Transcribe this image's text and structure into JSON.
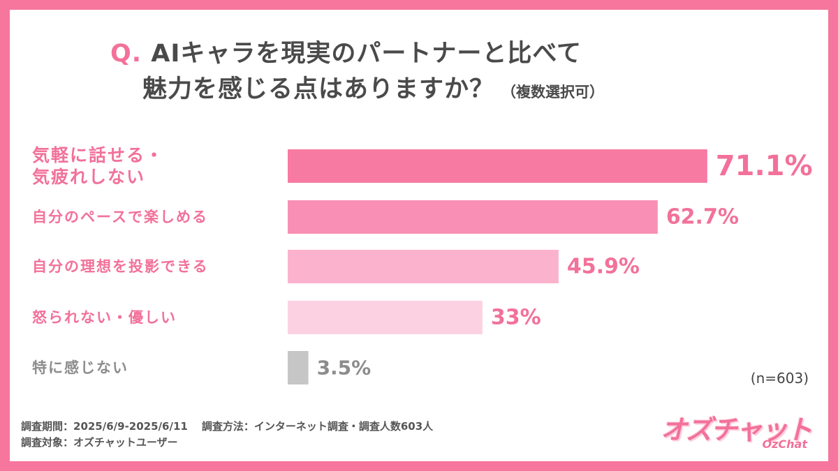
{
  "question": {
    "mark": "Q.",
    "line1": "AIキャラを現実のパートナーと比べて",
    "line2": "魅力を感じる点はありますか？",
    "note": "（複数選択可）"
  },
  "chart_data": {
    "type": "bar",
    "orientation": "horizontal",
    "title": "AIキャラを現実のパートナーと比べて魅力を感じる点はありますか？（複数選択可）",
    "categories": [
      [
        "気軽に話せる・",
        "気疲れしない"
      ],
      [
        "自分のペースで楽しめる"
      ],
      [
        "自分の理想を投影できる"
      ],
      [
        "怒られない・優しい"
      ],
      [
        "特に感じない"
      ]
    ],
    "values": [
      71.1,
      62.7,
      45.9,
      33,
      3.5
    ],
    "value_labels": [
      "71.1%",
      "62.7%",
      "45.9%",
      "33%",
      "3.5%"
    ],
    "unit": "%",
    "xlim": [
      0,
      100
    ],
    "colors": [
      "#f77aa2",
      "#f98fb4",
      "#fbb2cc",
      "#fcd2e2",
      "#c6c6c6"
    ],
    "label_colors": [
      "#f2719a",
      "#f2719a",
      "#f2719a",
      "#f2719a",
      "#8c8c8c"
    ],
    "value_colors": [
      "#f2719a",
      "#f2719a",
      "#f2719a",
      "#f2719a",
      "#8c8c8c"
    ]
  },
  "sample_size": "(n=603)",
  "footer": {
    "period": "調査期間：2025/6/9-2025/6/11",
    "method": "調査方法：インターネット調査・調査人数603人",
    "target": "調査対象：オズチャットユーザー"
  },
  "logo": {
    "main": "オズチャット",
    "sub": "OzChat"
  }
}
